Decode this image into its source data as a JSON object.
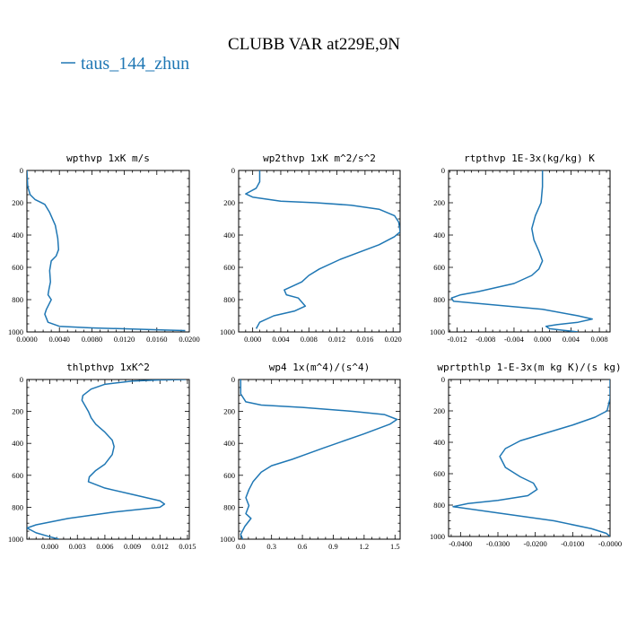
{
  "figure": {
    "title": "CLUBB VAR at229E,9N",
    "legend": [
      {
        "label": "taus_144_zhun",
        "color": "#1f77b4"
      }
    ]
  },
  "chart_data": [
    {
      "type": "line",
      "title": "wpthvp  1xK m/s",
      "xlim": [
        0.0,
        0.02
      ],
      "ylim": [
        1000,
        0
      ],
      "xticks": [
        0.0,
        0.004,
        0.008,
        0.012,
        0.016,
        0.02
      ],
      "xtick_labels": [
        "0.0000",
        "0.0040",
        "0.0080",
        "0.0120",
        "0.0160",
        "0.0200"
      ],
      "yticks": [
        0,
        200,
        400,
        600,
        800,
        1000
      ],
      "ytick_labels": [
        "0",
        "200",
        "400",
        "600",
        "800",
        "1000"
      ],
      "series": [
        {
          "color": "#1f77b4",
          "x": [
            0.0,
            0.0001,
            0.0004,
            0.001,
            0.0016,
            0.0022,
            0.0028,
            0.0035,
            0.0038,
            0.0039,
            0.0036,
            0.003,
            0.0028,
            0.0029,
            0.0027,
            0.0026,
            0.003,
            0.0027,
            0.0024,
            0.0022,
            0.0026,
            0.004,
            0.008,
            0.013,
            0.017,
            0.0195
          ],
          "y": [
            0,
            100,
            150,
            180,
            195,
            210,
            260,
            340,
            420,
            490,
            530,
            560,
            620,
            690,
            740,
            770,
            800,
            830,
            860,
            890,
            940,
            965,
            975,
            982,
            988,
            992
          ]
        }
      ]
    },
    {
      "type": "line",
      "title": "wp2thvp  1xK m^2/s^2",
      "xlim": [
        -0.002,
        0.021
      ],
      "ylim": [
        1000,
        0
      ],
      "xticks": [
        0.0,
        0.004,
        0.008,
        0.012,
        0.016,
        0.02
      ],
      "xtick_labels": [
        "0.000",
        "0.004",
        "0.008",
        "0.012",
        "0.016",
        "0.020"
      ],
      "yticks": [
        0,
        200,
        400,
        600,
        800,
        1000
      ],
      "ytick_labels": [
        "0",
        "200",
        "400",
        "600",
        "800",
        "1000"
      ],
      "series": [
        {
          "color": "#1f77b4",
          "x": [
            0.001,
            0.001,
            0.0005,
            -0.001,
            0.0,
            0.004,
            0.009,
            0.014,
            0.018,
            0.0202,
            0.0208,
            0.021,
            0.0202,
            0.018,
            0.0125,
            0.0095,
            0.008,
            0.007,
            0.006,
            0.0045,
            0.0048,
            0.0065,
            0.0075,
            0.006,
            0.003,
            0.001,
            0.0005
          ],
          "y": [
            0,
            70,
            110,
            145,
            165,
            190,
            200,
            215,
            240,
            280,
            320,
            380,
            410,
            460,
            550,
            610,
            650,
            690,
            710,
            740,
            770,
            790,
            840,
            870,
            900,
            940,
            980
          ]
        }
      ]
    },
    {
      "type": "line",
      "title": "rtpthvp  1E-3x(kg/kg) K",
      "xlim": [
        -0.0132,
        0.0095
      ],
      "ylim": [
        1000,
        0
      ],
      "xticks": [
        -0.012,
        -0.008,
        -0.004,
        0.0,
        0.004,
        0.008
      ],
      "xtick_labels": [
        "-0.012",
        "-0.008",
        "-0.004",
        "0.000",
        "0.004",
        "0.008"
      ],
      "yticks": [
        0,
        200,
        400,
        600,
        800,
        1000
      ],
      "ytick_labels": [
        "0",
        "200",
        "400",
        "600",
        "800",
        "1000"
      ],
      "series": [
        {
          "color": "#1f77b4",
          "x": [
            0.0,
            0.0,
            -0.0002,
            -0.001,
            -0.0015,
            -0.0012,
            -0.0005,
            0.0,
            -0.0005,
            -0.0015,
            -0.004,
            -0.009,
            -0.0115,
            -0.0128,
            -0.0125,
            0.0,
            0.005,
            0.007,
            0.005,
            0.002,
            0.0005,
            0.001,
            0.003,
            0.005
          ],
          "y": [
            0,
            100,
            200,
            280,
            360,
            430,
            500,
            560,
            610,
            650,
            700,
            750,
            770,
            790,
            810,
            860,
            900,
            920,
            940,
            955,
            965,
            980,
            990,
            1000
          ]
        }
      ]
    },
    {
      "type": "line",
      "title": "thlpthvp  1xK^2",
      "xlim": [
        -0.0025,
        0.0152
      ],
      "ylim": [
        1000,
        0
      ],
      "xticks": [
        0.0,
        0.003,
        0.006,
        0.009,
        0.012,
        0.015
      ],
      "xtick_labels": [
        "0.000",
        "0.003",
        "0.006",
        "0.009",
        "0.012",
        "0.015"
      ],
      "yticks": [
        0,
        200,
        400,
        600,
        800,
        1000
      ],
      "ytick_labels": [
        "0",
        "200",
        "400",
        "600",
        "800",
        "1000"
      ],
      "series": [
        {
          "color": "#1f77b4",
          "x": [
            0.0148,
            0.012,
            0.009,
            0.006,
            0.0045,
            0.0036,
            0.0035,
            0.0038,
            0.0042,
            0.0045,
            0.005,
            0.006,
            0.0068,
            0.007,
            0.0068,
            0.006,
            0.005,
            0.0043,
            0.0042,
            0.006,
            0.009,
            0.012,
            0.0125,
            0.012,
            0.007,
            0.002,
            -0.0015,
            -0.0025,
            -0.0015,
            0.0,
            0.001
          ],
          "y": [
            0,
            3,
            10,
            30,
            60,
            100,
            130,
            160,
            200,
            240,
            280,
            330,
            380,
            420,
            470,
            530,
            570,
            610,
            640,
            680,
            720,
            760,
            780,
            800,
            830,
            870,
            910,
            930,
            960,
            985,
            1000
          ]
        }
      ]
    },
    {
      "type": "line",
      "title": "wp4  1x(m^4)/(s^4)",
      "xlim": [
        -0.02,
        1.55
      ],
      "ylim": [
        1000,
        0
      ],
      "xticks": [
        0.0,
        0.3,
        0.6,
        0.9,
        1.2,
        1.5
      ],
      "xtick_labels": [
        "0.0",
        "0.3",
        "0.6",
        "0.9",
        "1.2",
        "1.5"
      ],
      "yticks": [
        0,
        200,
        400,
        600,
        800,
        1000
      ],
      "ytick_labels": [
        "0",
        "200",
        "400",
        "600",
        "800",
        "1000"
      ],
      "series": [
        {
          "color": "#1f77b4",
          "x": [
            0.0,
            0.0,
            0.05,
            0.2,
            0.6,
            1.1,
            1.4,
            1.52,
            1.45,
            1.2,
            0.8,
            0.5,
            0.3,
            0.2,
            0.12,
            0.08,
            0.05,
            0.08,
            0.05,
            0.1,
            0.04,
            0.0,
            0.02
          ],
          "y": [
            0,
            90,
            140,
            160,
            175,
            200,
            220,
            250,
            280,
            340,
            430,
            500,
            540,
            580,
            640,
            690,
            740,
            790,
            840,
            870,
            920,
            970,
            1000
          ]
        }
      ]
    },
    {
      "type": "line",
      "title": "wprtpthlp  1-E-3x(m kg K)/(s kg)",
      "xlim": [
        -0.0432,
        0.0
      ],
      "ylim": [
        1000,
        0
      ],
      "xticks": [
        -0.04,
        -0.03,
        -0.02,
        -0.01,
        0.0
      ],
      "xtick_labels": [
        "-0.0400",
        "-0.0300",
        "-0.0200",
        "-0.0100",
        "-0.0000"
      ],
      "yticks": [
        0,
        200,
        400,
        600,
        800,
        1000
      ],
      "ytick_labels": [
        "0",
        "200",
        "400",
        "600",
        "800",
        "1000"
      ],
      "series": [
        {
          "color": "#1f77b4",
          "x": [
            0.0,
            0.0,
            -0.0008,
            -0.004,
            -0.01,
            -0.017,
            -0.024,
            -0.028,
            -0.0295,
            -0.028,
            -0.024,
            -0.0205,
            -0.0195,
            -0.022,
            -0.03,
            -0.038,
            -0.042,
            -0.03,
            -0.015,
            -0.005,
            -0.001,
            0.0
          ],
          "y": [
            0,
            120,
            200,
            240,
            290,
            340,
            390,
            440,
            490,
            560,
            620,
            660,
            700,
            740,
            770,
            790,
            810,
            850,
            900,
            950,
            980,
            1000
          ]
        }
      ]
    }
  ]
}
